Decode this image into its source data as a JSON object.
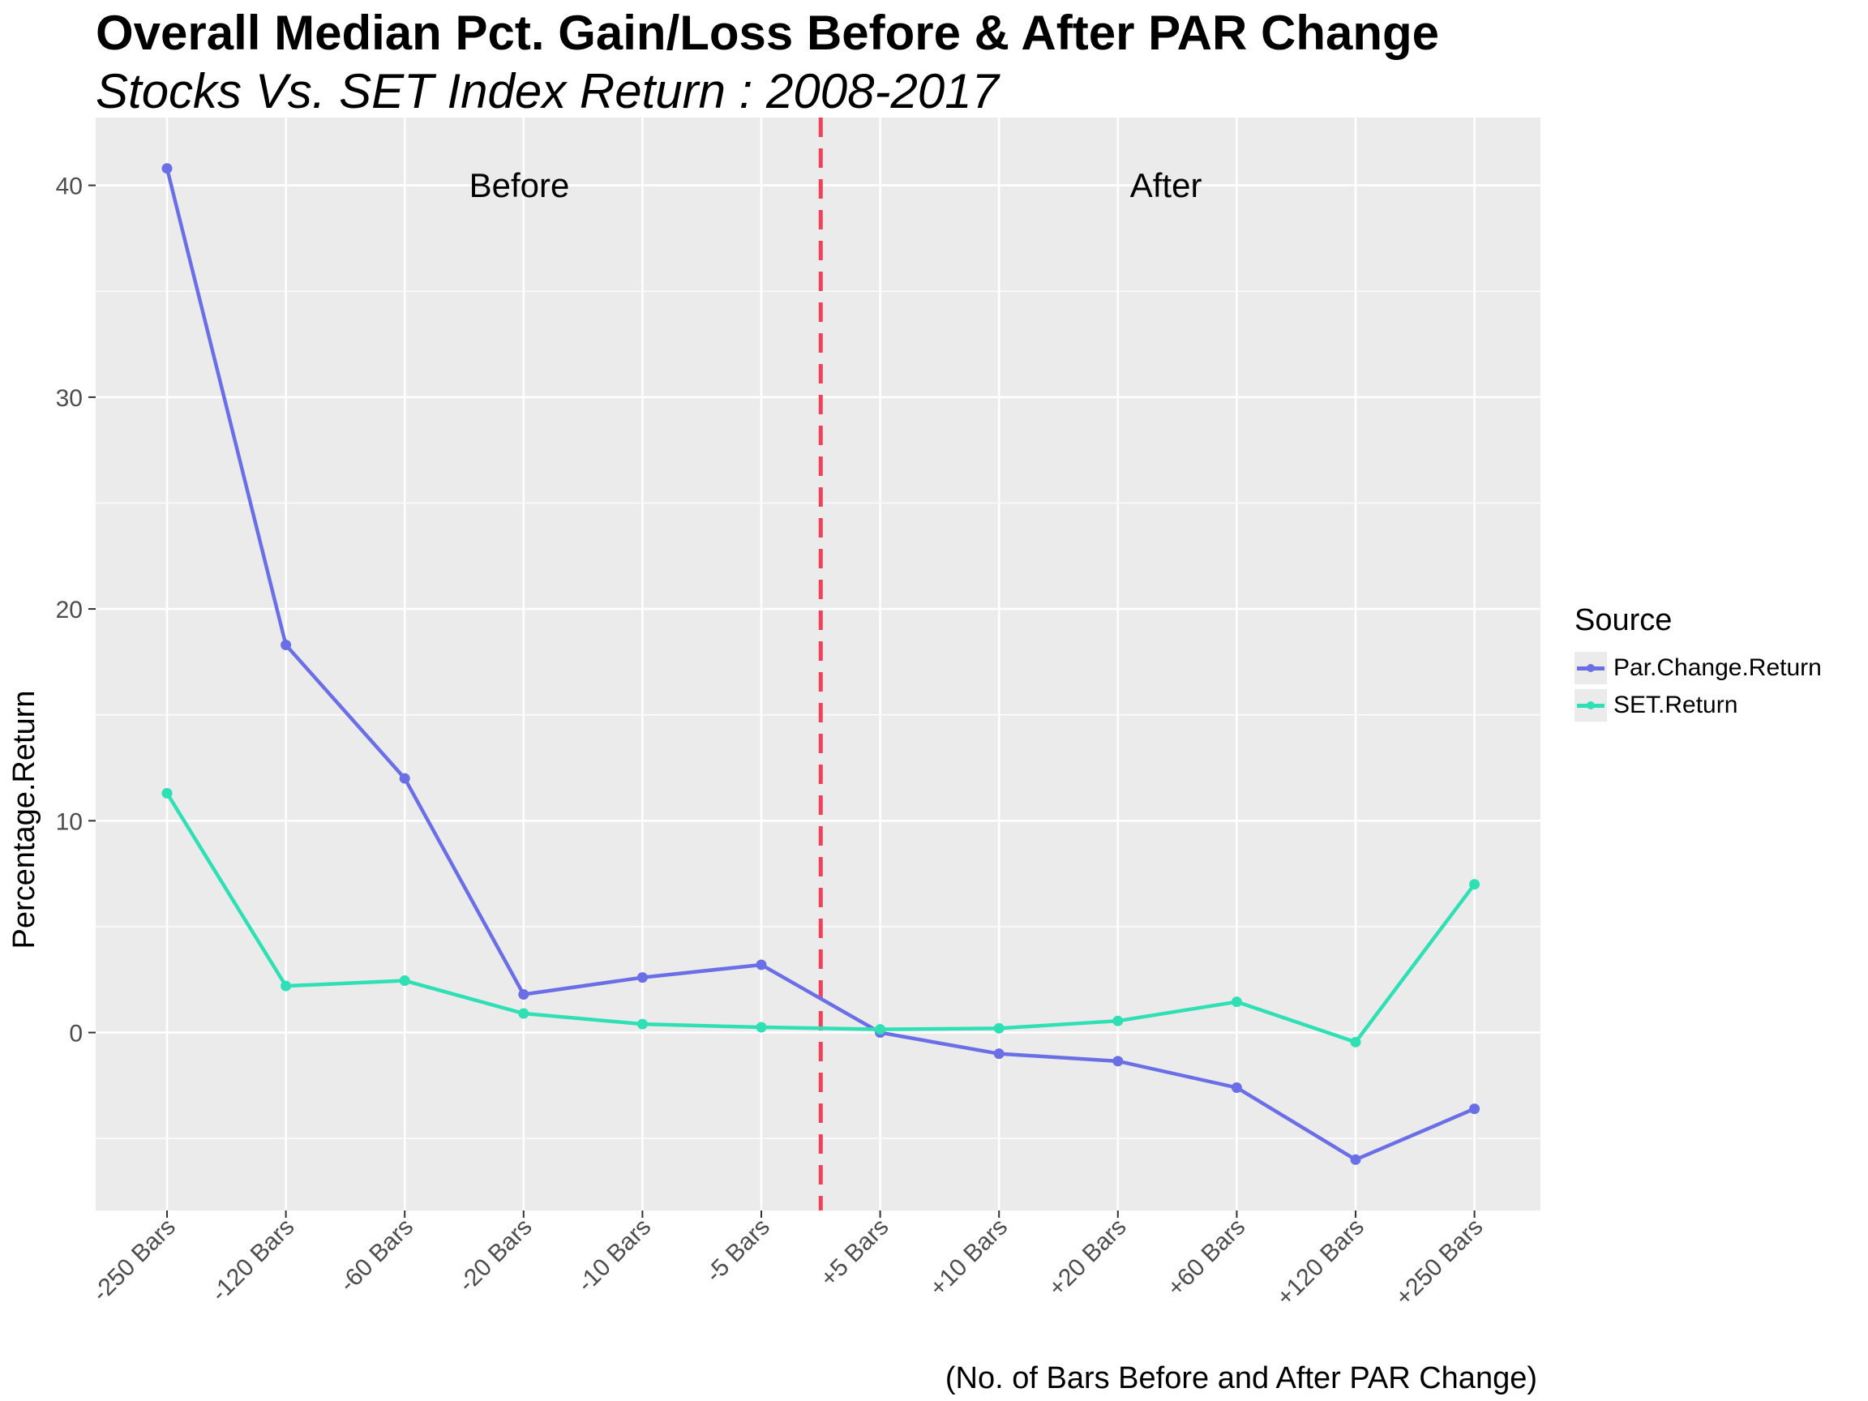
{
  "title": "Overall Median Pct. Gain/Loss Before & After PAR Change",
  "subtitle": "Stocks Vs. SET Index Return : 2008-2017",
  "colors": {
    "panel": "#ebebeb",
    "grid": "#ffffff",
    "par_series": "#6b6fe6",
    "set_series": "#2fe0b4",
    "divider": "#f0405a"
  },
  "legend": {
    "title": "Source",
    "items": [
      {
        "label": "Par.Change.Return",
        "color": "#6b6fe6"
      },
      {
        "label": "SET.Return",
        "color": "#2fe0b4"
      }
    ]
  },
  "chart_data": {
    "type": "line",
    "title": "Overall Median Pct. Gain/Loss Before & After PAR Change",
    "subtitle": "Stocks Vs. SET Index Return : 2008-2017",
    "xlabel": "(No. of Bars Before and After PAR Change)",
    "ylabel": "Percentage.Return",
    "categories": [
      "-250 Bars",
      "-120 Bars",
      "-60 Bars",
      "-20 Bars",
      "-10 Bars",
      "-5 Bars",
      "+5 Bars",
      "+10 Bars",
      "+20 Bars",
      "+60 Bars",
      "+120 Bars",
      "+250 Bars"
    ],
    "ylim": [
      -8.4,
      43.2
    ],
    "yticks": [
      0,
      10,
      20,
      30,
      40
    ],
    "grid": true,
    "legend_position": "right",
    "series": [
      {
        "name": "Par.Change.Return",
        "values": [
          40.8,
          18.3,
          12.0,
          1.8,
          2.6,
          3.2,
          0.0,
          -1.0,
          -1.35,
          -2.6,
          -6.0,
          -3.6
        ]
      },
      {
        "name": "SET.Return",
        "values": [
          11.3,
          2.2,
          2.45,
          0.9,
          0.4,
          0.25,
          0.15,
          0.2,
          0.55,
          1.45,
          -0.45,
          7.0
        ]
      }
    ],
    "annotations": [
      {
        "text": "Before"
      },
      {
        "text": "After"
      }
    ],
    "vline": {
      "between": [
        "-5 Bars",
        "+5 Bars"
      ],
      "style": "dashed"
    }
  }
}
